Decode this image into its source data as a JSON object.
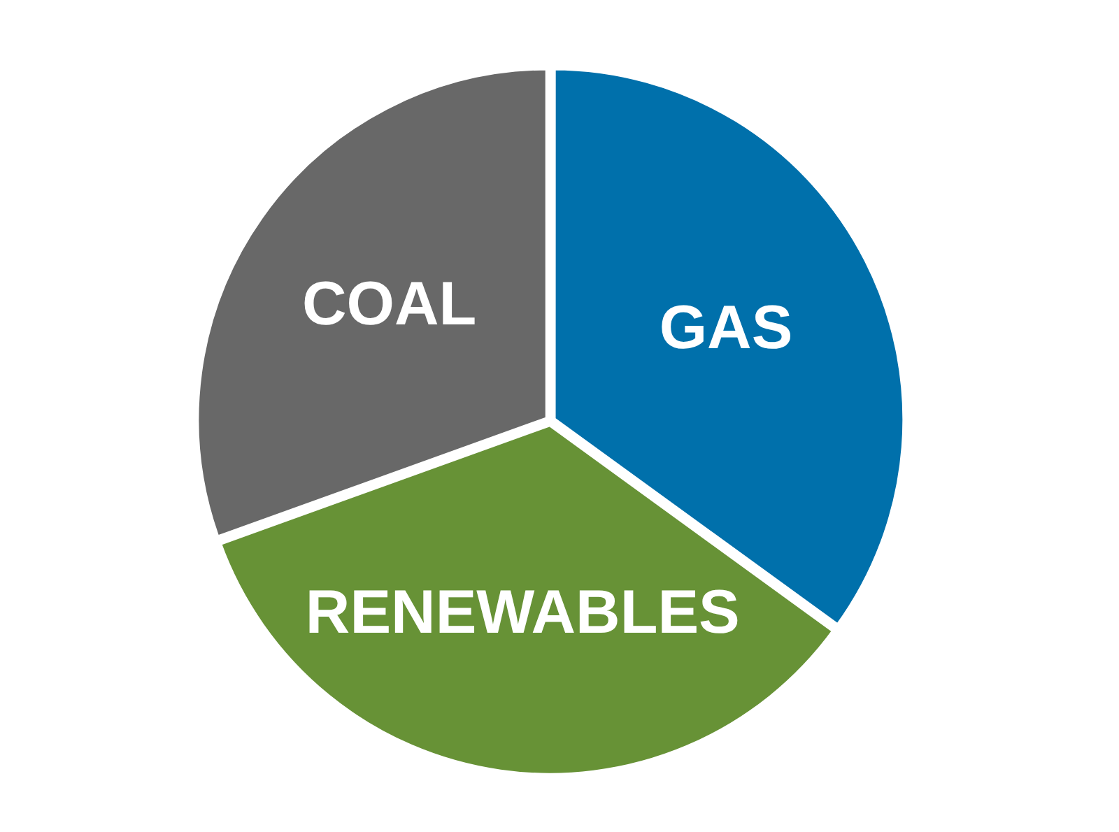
{
  "chart_data": {
    "type": "pie",
    "categories": [
      "GAS",
      "RENEWABLES",
      "COAL"
    ],
    "values": [
      35,
      34.5,
      30.5
    ],
    "colors": [
      "#0070ab",
      "#679236",
      "#686868"
    ]
  }
}
